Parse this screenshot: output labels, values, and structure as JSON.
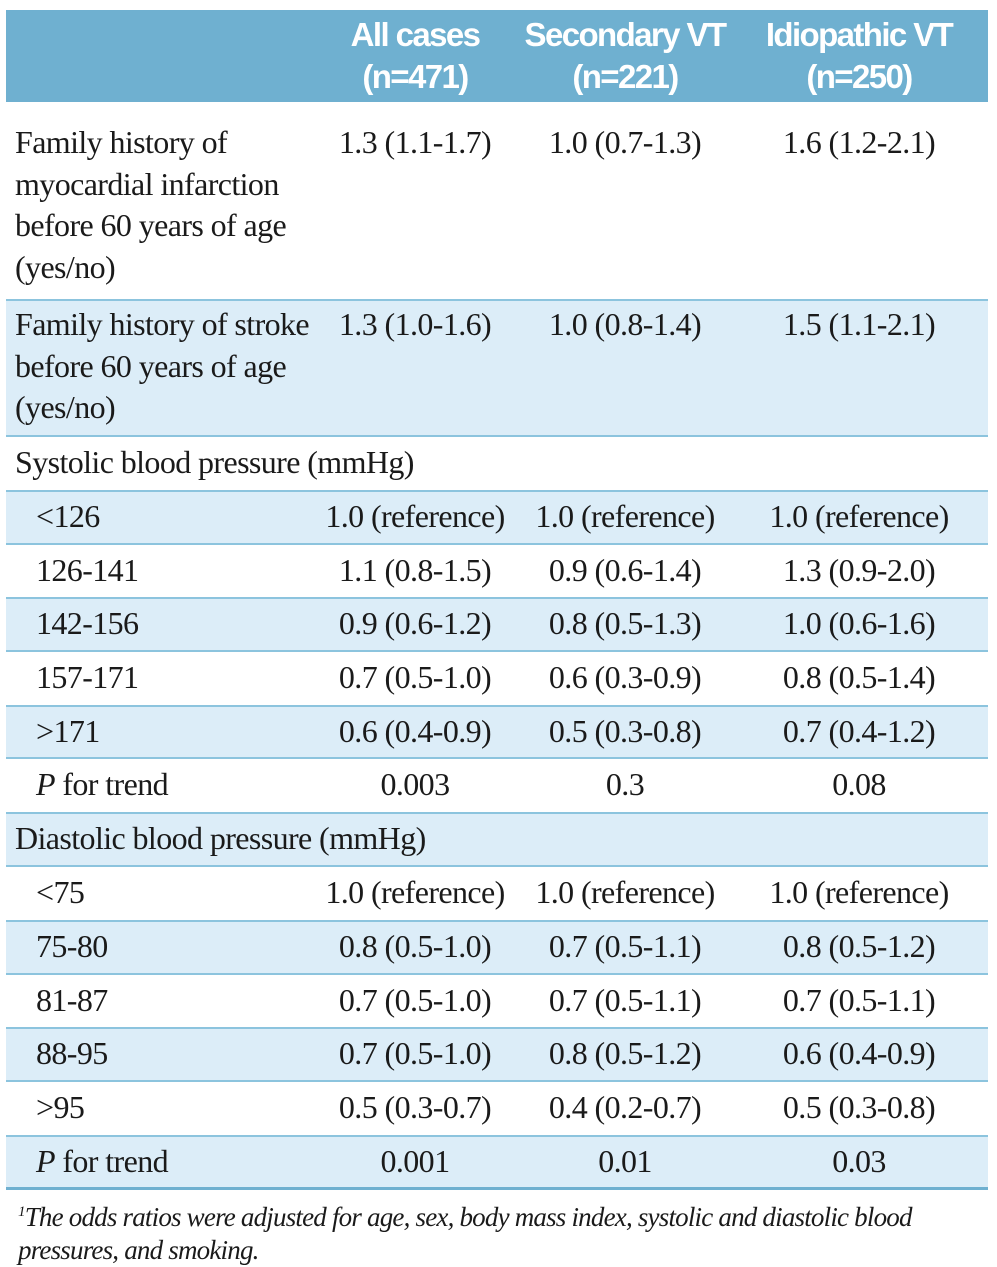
{
  "header": {
    "columns": [
      {
        "line1": "",
        "line2": ""
      },
      {
        "line1": "All cases",
        "line2": "(n=471)"
      },
      {
        "line1": "Secondary VT",
        "line2": "(n=221)"
      },
      {
        "line1": "Idiopathic VT",
        "line2": "(n=250)"
      }
    ]
  },
  "rows": [
    {
      "label": "Family history of myocardial infarction before 60 years of age (yes/no)",
      "values": [
        "1.3 (1.1-1.7)",
        "1.0 (0.7-1.3)",
        "1.6 (1.2-2.1)"
      ]
    },
    {
      "label": "Family history of stroke before 60 years of age (yes/no)",
      "values": [
        "1.3 (1.0-1.6)",
        "1.0 (0.8-1.4)",
        "1.5 (1.1-2.1)"
      ]
    },
    {
      "label": "Systolic blood pressure (mmHg)",
      "values": [
        "",
        "",
        ""
      ]
    },
    {
      "label": "<126",
      "values": [
        "1.0 (reference)",
        "1.0 (reference)",
        "1.0 (reference)"
      ]
    },
    {
      "label": "126-141",
      "values": [
        "1.1 (0.8-1.5)",
        "0.9 (0.6-1.4)",
        "1.3 (0.9-2.0)"
      ]
    },
    {
      "label": "142-156",
      "values": [
        "0.9 (0.6-1.2)",
        "0.8 (0.5-1.3)",
        "1.0 (0.6-1.6)"
      ]
    },
    {
      "label": "157-171",
      "values": [
        "0.7 (0.5-1.0)",
        "0.6 (0.3-0.9)",
        "0.8 (0.5-1.4)"
      ]
    },
    {
      "label": ">171",
      "values": [
        "0.6 (0.4-0.9)",
        "0.5 (0.3-0.8)",
        "0.7 (0.4-1.2)"
      ]
    },
    {
      "label_italic": "P",
      "label": " for trend",
      "values": [
        "0.003",
        "0.3",
        "0.08"
      ]
    },
    {
      "label": "Diastolic blood pressure (mmHg)",
      "values": [
        "",
        "",
        ""
      ]
    },
    {
      "label": "<75",
      "values": [
        "1.0 (reference)",
        "1.0 (reference)",
        "1.0 (reference)"
      ]
    },
    {
      "label": "75-80",
      "values": [
        "0.8 (0.5-1.0)",
        "0.7 (0.5-1.1)",
        "0.8 (0.5-1.2)"
      ]
    },
    {
      "label": "81-87",
      "values": [
        "0.7 (0.5-1.0)",
        "0.7 (0.5-1.1)",
        "0.7 (0.5-1.1)"
      ]
    },
    {
      "label": "88-95",
      "values": [
        "0.7 (0.5-1.0)",
        "0.8 (0.5-1.2)",
        "0.6 (0.4-0.9)"
      ]
    },
    {
      "label": ">95",
      "values": [
        "0.5 (0.3-0.7)",
        "0.4 (0.2-0.7)",
        "0.5 (0.3-0.8)"
      ]
    },
    {
      "label_italic": "P",
      "label": " for trend",
      "values": [
        "0.001",
        "0.01",
        "0.03"
      ]
    }
  ],
  "footnote": {
    "marker": "1",
    "text": "The odds ratios were adjusted for age, sex, body mass index, systolic and diastolic blood pressures, and smoking."
  },
  "colors": {
    "header_bg": "#6fb0d0",
    "alt_row_bg": "#dcedf8",
    "rule": "#8cc4de"
  }
}
